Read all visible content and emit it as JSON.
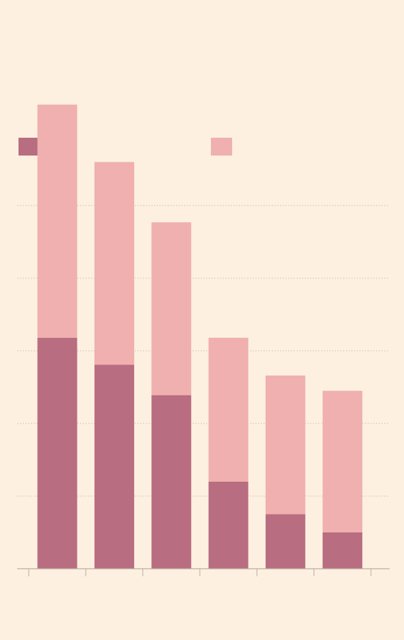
{
  "chart_data": {
    "type": "bar",
    "stacked": true,
    "title": "",
    "subtitle": "",
    "xlabel": "",
    "ylabel": "",
    "categories": [
      "",
      "",
      "",
      "",
      "",
      ""
    ],
    "series": [
      {
        "color": "#b96d80",
        "values": [
          3.18,
          2.81,
          2.39,
          1.2,
          0.75,
          0.5
        ]
      },
      {
        "color": "#efb0af",
        "values": [
          3.21,
          2.79,
          2.38,
          1.98,
          1.91,
          1.95
        ]
      }
    ],
    "ylim": [
      0,
      6
    ],
    "yticks": [
      0,
      1,
      2,
      3,
      4,
      5,
      6
    ],
    "ytick_labels": [
      "",
      "",
      "",
      "",
      "",
      "",
      ""
    ],
    "grid": true,
    "grid_style": "dotted",
    "legend": "top-left",
    "legend_labels": [
      "",
      ""
    ]
  },
  "colors": {
    "background": "#fdf0e0",
    "axis": "#b9ada0",
    "grid": "#c9bcae"
  }
}
